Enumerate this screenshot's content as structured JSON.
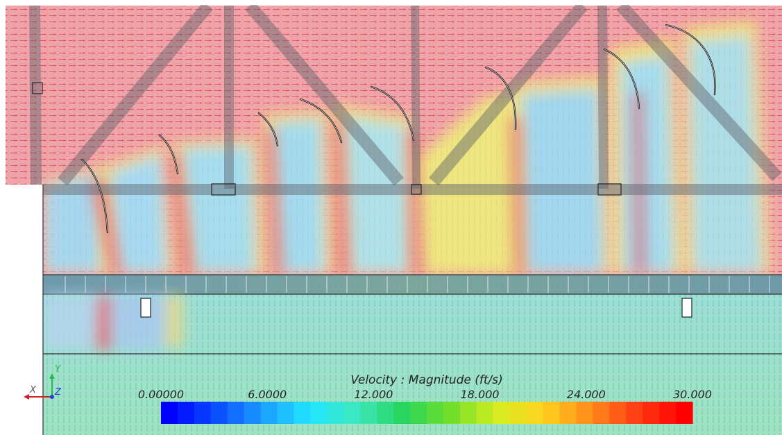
{
  "legend": {
    "title": "Velocity : Magnitude (ft/s)",
    "ticks": [
      "0.00000",
      "6.0000",
      "12.000",
      "18.000",
      "24.000",
      "30.000"
    ],
    "range": [
      0,
      30
    ],
    "colormap": [
      "#0000ff",
      "#0a4dff",
      "#1a9cff",
      "#22e6ff",
      "#3de8c0",
      "#27d45c",
      "#6fe02a",
      "#d6ee22",
      "#ffd21e",
      "#ff8a1a",
      "#ff3a14",
      "#ff0000"
    ]
  },
  "triad": {
    "x_label": "X",
    "y_label": "Y",
    "z_label": "Z"
  },
  "colors": {
    "fast_flow": "#e8606e",
    "fast_bg": "#f2a0a8",
    "mid_flow": "#6fd6a0",
    "slow_flow": "#a9d9f2",
    "structure": "#555a66"
  }
}
